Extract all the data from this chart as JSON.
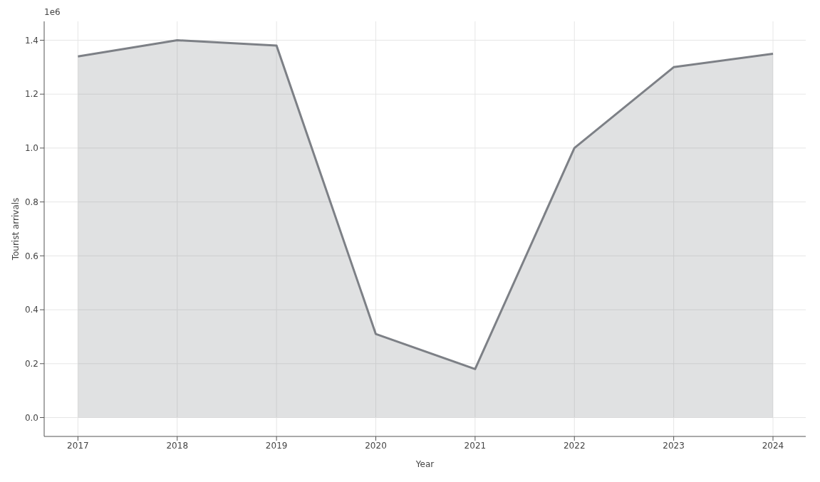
{
  "chart_data": {
    "type": "area",
    "xlabel": "Year",
    "ylabel": "Tourist arrivals",
    "annotations": [
      "1e6"
    ],
    "x": [
      2017,
      2018,
      2019,
      2020,
      2021,
      2022,
      2023,
      2024
    ],
    "series": [
      {
        "color": "#7d8086",
        "values": [
          1.34,
          1.4,
          1.38,
          0.31,
          0.18,
          1.0,
          1.3,
          1.35
        ]
      }
    ],
    "xlim": [
      2016.66,
      2024.33
    ],
    "xticks": [
      2017,
      2018,
      2019,
      2020,
      2021,
      2022,
      2023,
      2024
    ],
    "ylim": [
      -0.07,
      1.47
    ],
    "yticks": [
      {
        "value": 0,
        "label": "0.0"
      },
      {
        "value": 0.2,
        "label": "0.2"
      },
      {
        "value": 0.4,
        "label": "0.4"
      },
      {
        "value": 0.6,
        "label": "0.6"
      },
      {
        "value": 0.8,
        "label": "0.8"
      },
      {
        "value": 1.0,
        "label": "1.0"
      },
      {
        "value": 1.2,
        "label": "1.2"
      },
      {
        "value": 1.4,
        "label": "1.4"
      }
    ],
    "grid": true,
    "marker": "none",
    "line_style": "solid"
  }
}
